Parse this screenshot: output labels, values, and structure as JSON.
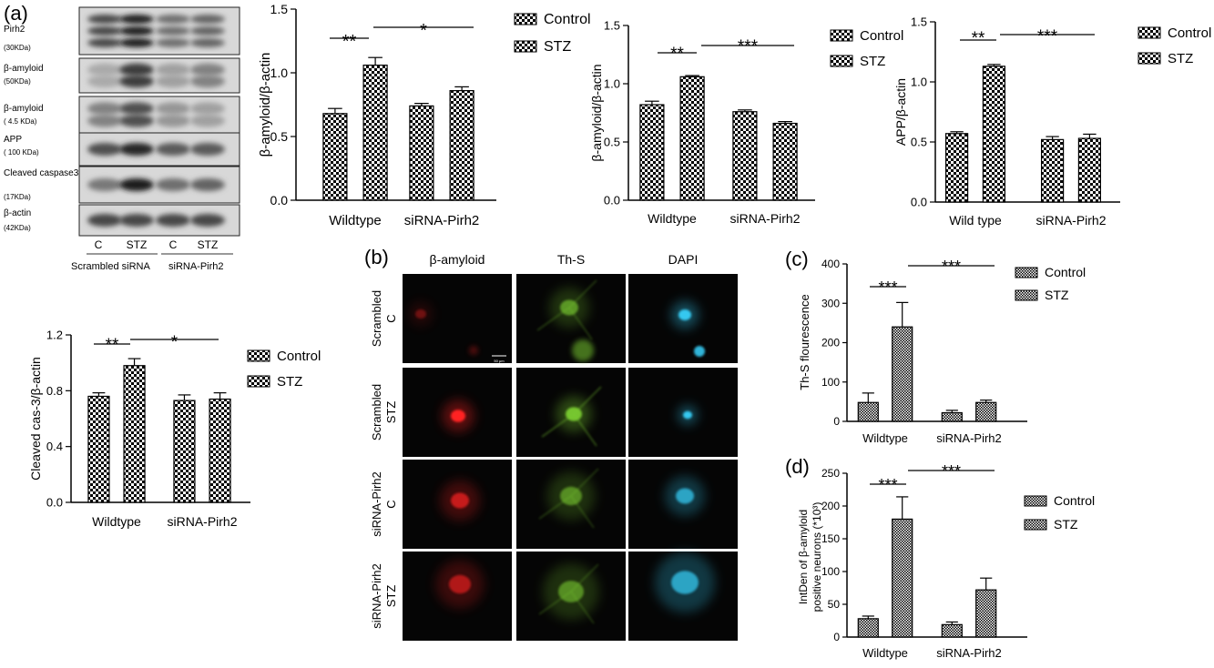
{
  "panel_labels": {
    "a": "(a)",
    "b": "(b)",
    "c": "(c)",
    "d": "(d)"
  },
  "legend": {
    "control": "Control",
    "stz": "STZ"
  },
  "western_blot": {
    "rows": [
      {
        "name": "Pirh2",
        "size": "(30KDa)",
        "serif": true,
        "intensity": [
          0.75,
          0.95,
          0.55,
          0.6
        ]
      },
      {
        "name": "β-amyloid",
        "size": "(50KDa)",
        "serif": false,
        "intensity": [
          0.25,
          0.8,
          0.3,
          0.45
        ]
      },
      {
        "name": "β-amyloid",
        "size": "( 4.5 KDa)",
        "serif": true,
        "intensity": [
          0.45,
          0.7,
          0.35,
          0.3
        ]
      },
      {
        "name": "APP",
        "size": "( 100 KDa)",
        "serif": true,
        "intensity": [
          0.7,
          0.9,
          0.65,
          0.65
        ]
      },
      {
        "name": "Cleaved caspase3",
        "size": "(17KDa)",
        "serif": false,
        "intensity": [
          0.5,
          0.95,
          0.55,
          0.6
        ]
      },
      {
        "name": "β-actin",
        "size": "(42KDa)",
        "serif": false,
        "intensity": [
          0.75,
          0.75,
          0.75,
          0.75
        ]
      }
    ],
    "lanes": [
      "C",
      "STZ",
      "C",
      "STZ"
    ],
    "groups": [
      "Scrambled  siRNA",
      "siRNA-Pirh2"
    ]
  },
  "microscopy": {
    "columns": [
      "β-amyloid",
      "Th-S",
      "DAPI"
    ],
    "rows": [
      "Scrambled C",
      "Scrambled STZ",
      "siRNA-Pirh2 C",
      "siRNA-Pirh2 STZ"
    ],
    "scale_bar": "50 μm",
    "channel_colors": [
      "#ff2020",
      "#7acc30",
      "#35c8f0"
    ]
  },
  "chart_data": [
    {
      "id": "a1",
      "type": "bar",
      "categories": [
        "Wildtype",
        "siRNA-Pirh2"
      ],
      "series": [
        {
          "name": "Control",
          "values": [
            0.68,
            0.74
          ],
          "errors": [
            0.04,
            0.02
          ]
        },
        {
          "name": "STZ",
          "values": [
            1.06,
            0.86
          ],
          "errors": [
            0.06,
            0.03
          ]
        }
      ],
      "ylabel": "β-amyloid/β-actin",
      "ylim": [
        0,
        1.5
      ],
      "yticks": [
        "0.0",
        "0.5",
        "1.0",
        "1.5"
      ],
      "significance": [
        "**",
        "*"
      ],
      "legend_position": "right"
    },
    {
      "id": "a2",
      "type": "bar",
      "categories": [
        "Wildtype",
        "siRNA-Pirh2"
      ],
      "series": [
        {
          "name": "Control",
          "values": [
            0.82,
            0.76
          ],
          "errors": [
            0.03,
            0.015
          ]
        },
        {
          "name": "STZ",
          "values": [
            1.06,
            0.66
          ],
          "errors": [
            0.01,
            0.015
          ]
        }
      ],
      "ylabel": "β-amyloid/β-actin",
      "ylim": [
        0,
        1.5
      ],
      "yticks": [
        "0.0",
        "0.5",
        "1.0",
        "1.5"
      ],
      "significance": [
        "**",
        "***"
      ],
      "legend_position": "right"
    },
    {
      "id": "a3",
      "type": "bar",
      "categories": [
        "Wild type",
        "siRNA-Pirh2"
      ],
      "series": [
        {
          "name": "Control",
          "values": [
            0.57,
            0.52
          ],
          "errors": [
            0.015,
            0.025
          ]
        },
        {
          "name": "STZ",
          "values": [
            1.13,
            0.53
          ],
          "errors": [
            0.015,
            0.035
          ]
        }
      ],
      "ylabel": "APP/β-actin",
      "ylim": [
        0,
        1.5
      ],
      "yticks": [
        "0.0",
        "0.5",
        "1.0",
        "1.5"
      ],
      "significance": [
        "**",
        "***"
      ],
      "legend_position": "right"
    },
    {
      "id": "a4",
      "type": "bar",
      "categories": [
        "Wildtype",
        "siRNA-Pirh2"
      ],
      "series": [
        {
          "name": "Control",
          "values": [
            0.76,
            0.73
          ],
          "errors": [
            0.025,
            0.04
          ]
        },
        {
          "name": "STZ",
          "values": [
            0.98,
            0.74
          ],
          "errors": [
            0.05,
            0.045
          ]
        }
      ],
      "ylabel": "Cleaved cas-3/β-actin",
      "ylim": [
        0,
        1.2
      ],
      "yticks": [
        "0.0",
        "0.4",
        "0.8",
        "1.2"
      ],
      "significance": [
        "**",
        "*"
      ],
      "legend_position": "right"
    },
    {
      "id": "c",
      "type": "bar",
      "categories": [
        "Wildtype",
        "siRNA-Pirh2"
      ],
      "series": [
        {
          "name": "Control",
          "values": [
            48,
            22
          ],
          "errors": [
            24,
            6
          ]
        },
        {
          "name": "STZ",
          "values": [
            240,
            48
          ],
          "errors": [
            62,
            6
          ]
        }
      ],
      "ylabel": "Th-S flourescence",
      "ylim": [
        0,
        400
      ],
      "yticks": [
        "0",
        "100",
        "200",
        "300",
        "400"
      ],
      "significance": [
        "***",
        "***"
      ],
      "legend_position": "right"
    },
    {
      "id": "d",
      "type": "bar",
      "categories": [
        "Wildtype",
        "siRNA-Pirh2"
      ],
      "series": [
        {
          "name": "Control",
          "values": [
            28,
            19
          ],
          "errors": [
            4,
            4
          ]
        },
        {
          "name": "STZ",
          "values": [
            180,
            72
          ],
          "errors": [
            34,
            18
          ]
        }
      ],
      "ylabel": "IntDen of β-amyloid positive neurons (*10³)",
      "ylim": [
        0,
        250
      ],
      "yticks": [
        "0",
        "50",
        "100",
        "150",
        "200",
        "250"
      ],
      "significance": [
        "***",
        "***"
      ],
      "legend_position": "right"
    }
  ]
}
